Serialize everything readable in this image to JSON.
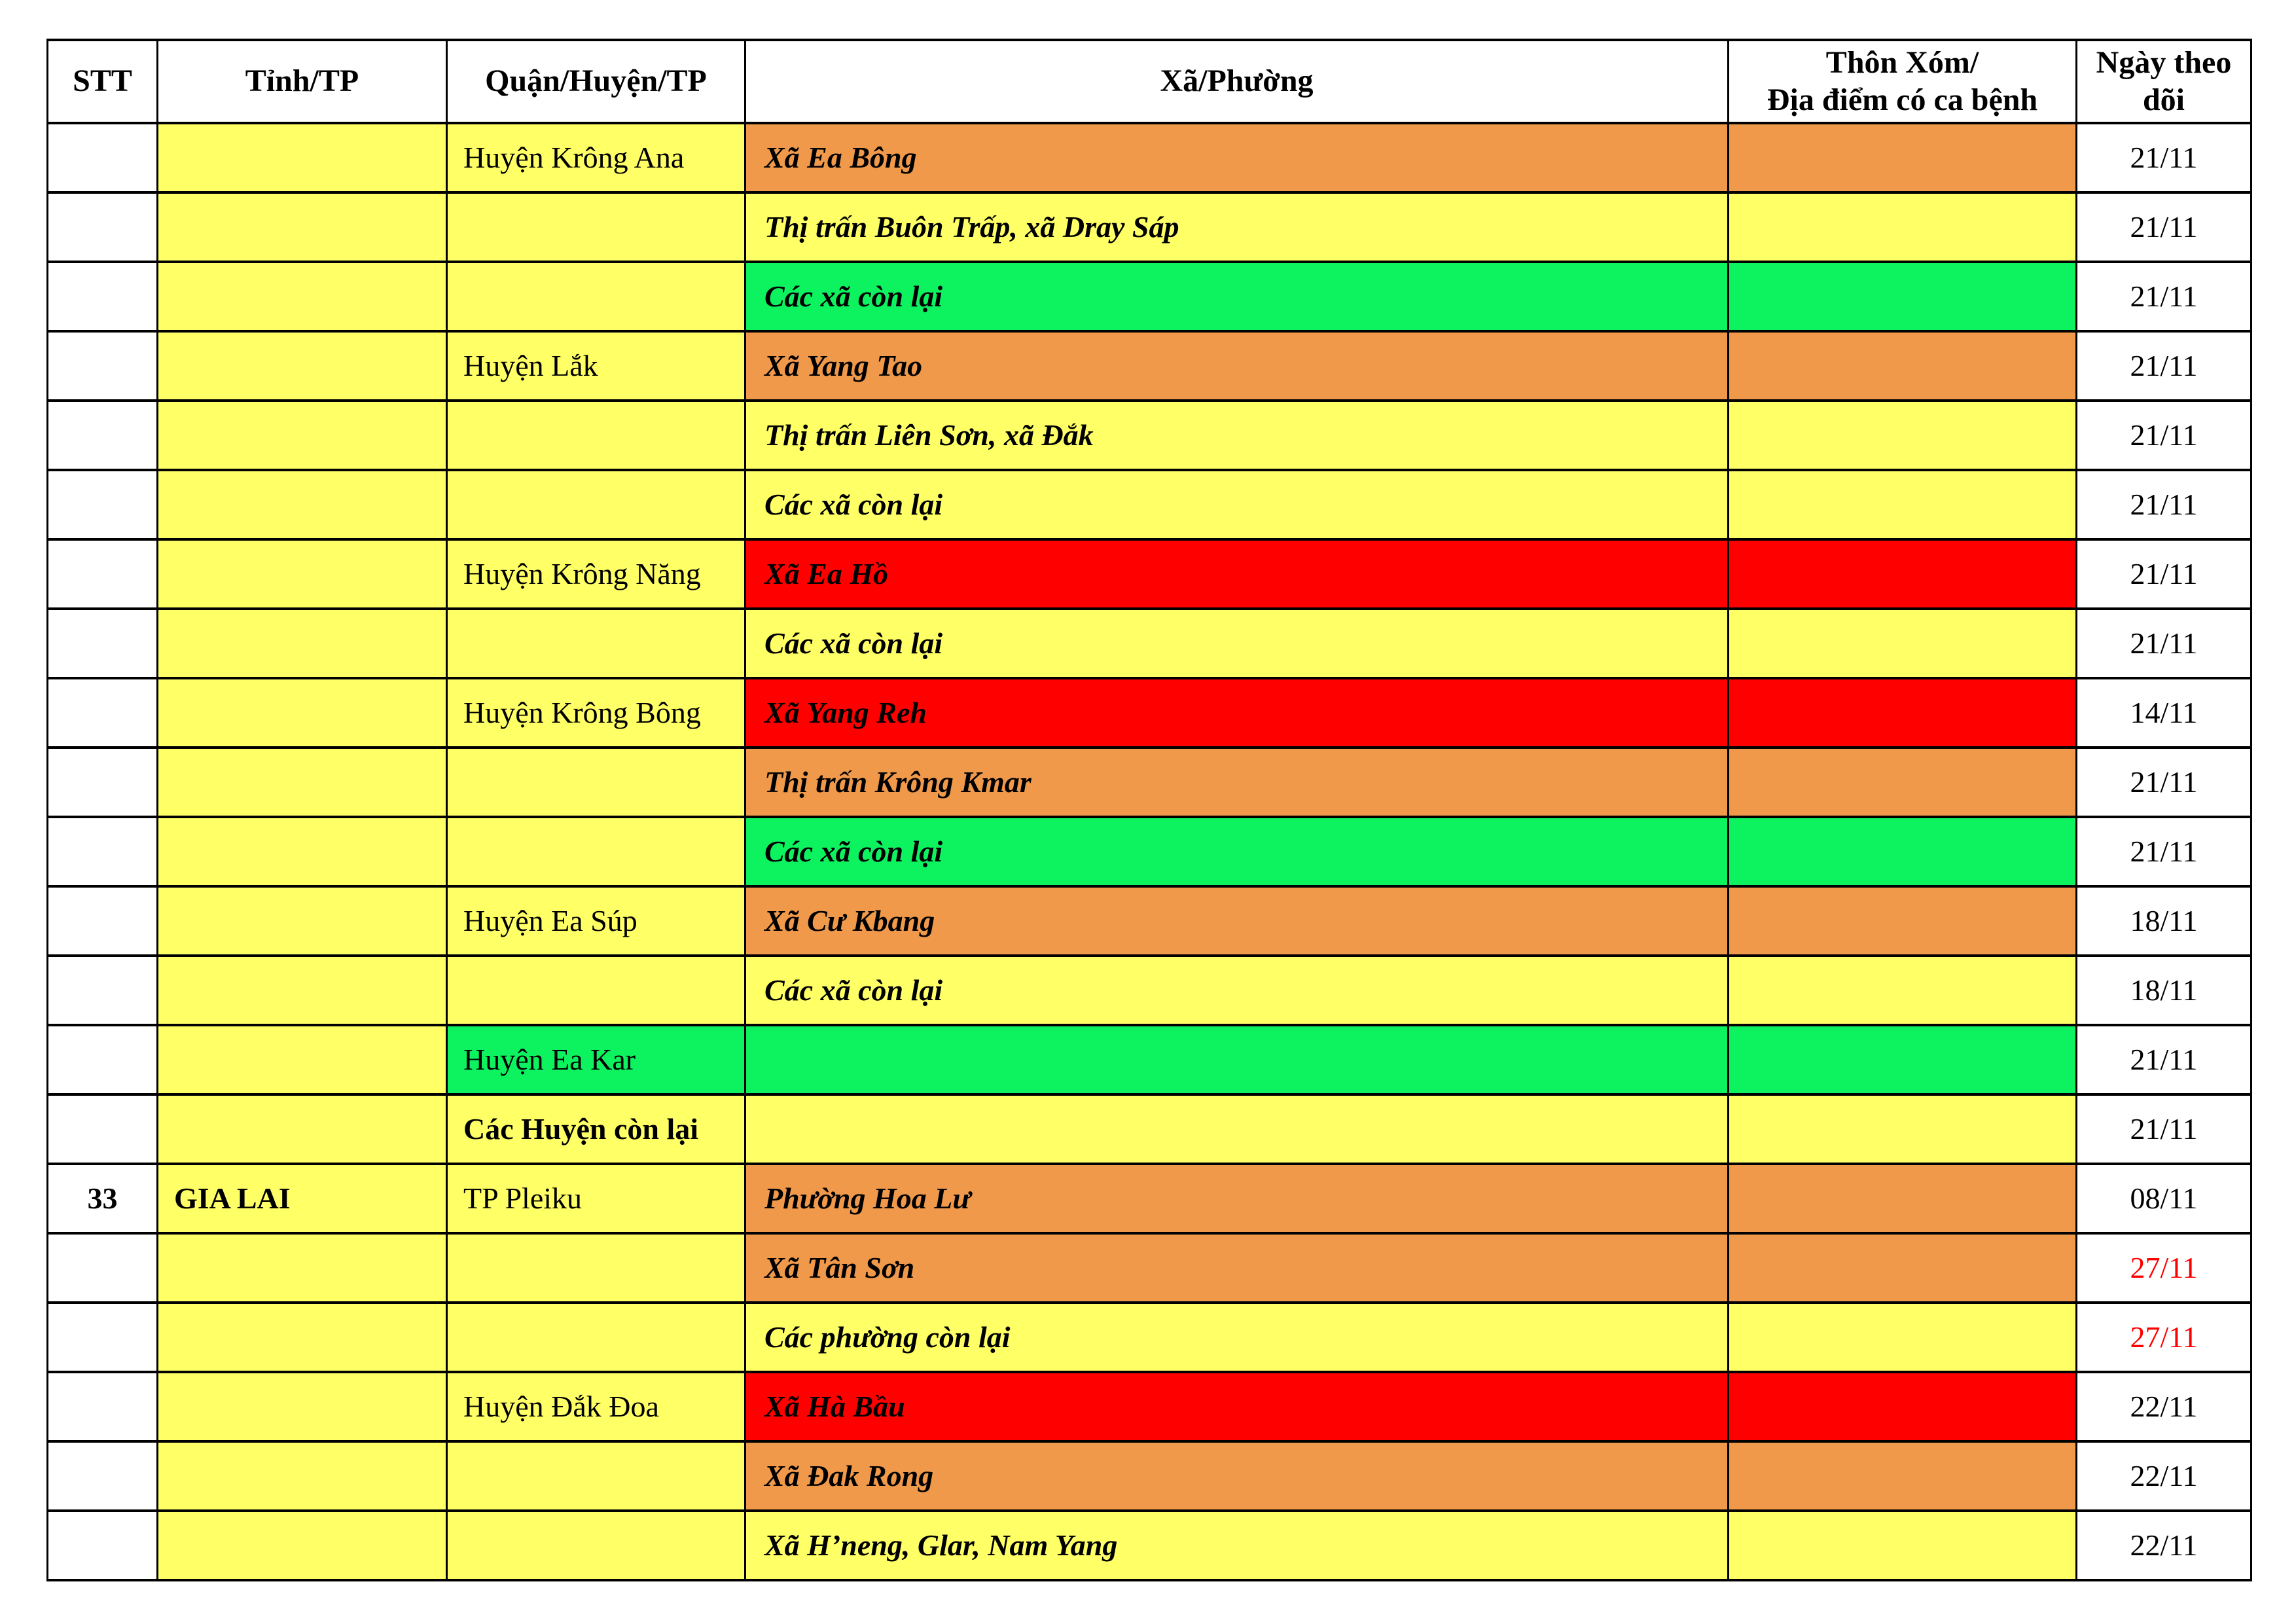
{
  "colors": {
    "yellow": "#FFFF66",
    "orange": "#F0994B",
    "red": "#FF0000",
    "green": "#0DF35F",
    "white": "#FFFFFF",
    "date_alert": "#FF0000",
    "text": "#000000",
    "border": "#000000"
  },
  "table": {
    "headers": [
      "STT",
      "Tỉnh/TP",
      "Quận/Huyện/TP",
      "Xã/Phường",
      "Thôn Xóm/\nĐịa điểm có ca bệnh",
      "Ngày theo\ndõi"
    ],
    "rows": [
      {
        "stt": "",
        "province": "",
        "district": "Huyện Krông Ana",
        "district_color": "yellow",
        "district_bold": false,
        "ward": "Xã Ea Bông",
        "ward_color": "orange",
        "hamlet": "",
        "hamlet_color": "orange",
        "date": "21/11",
        "date_color": "black"
      },
      {
        "stt": "",
        "province": "",
        "district": "",
        "district_color": "yellow",
        "district_bold": false,
        "ward": "Thị trấn Buôn Trấp, xã Dray Sáp",
        "ward_color": "yellow",
        "hamlet": "",
        "hamlet_color": "yellow",
        "date": "21/11",
        "date_color": "black"
      },
      {
        "stt": "",
        "province": "",
        "district": "",
        "district_color": "yellow",
        "district_bold": false,
        "ward": "Các xã còn lại",
        "ward_color": "green",
        "hamlet": "",
        "hamlet_color": "green",
        "date": "21/11",
        "date_color": "black"
      },
      {
        "stt": "",
        "province": "",
        "district": "Huyện Lắk",
        "district_color": "yellow",
        "district_bold": false,
        "ward": "Xã Yang Tao",
        "ward_color": "orange",
        "hamlet": "",
        "hamlet_color": "orange",
        "date": "21/11",
        "date_color": "black"
      },
      {
        "stt": "",
        "province": "",
        "district": "",
        "district_color": "yellow",
        "district_bold": false,
        "ward": "Thị trấn Liên Sơn, xã Đắk",
        "ward_color": "yellow",
        "hamlet": "",
        "hamlet_color": "yellow",
        "date": "21/11",
        "date_color": "black"
      },
      {
        "stt": "",
        "province": "",
        "district": "",
        "district_color": "yellow",
        "district_bold": false,
        "ward": "Các xã còn lại",
        "ward_color": "yellow",
        "hamlet": "",
        "hamlet_color": "yellow",
        "date": "21/11",
        "date_color": "black"
      },
      {
        "stt": "",
        "province": "",
        "district": "Huyện Krông Năng",
        "district_color": "yellow",
        "district_bold": false,
        "ward": "Xã Ea Hồ",
        "ward_color": "red",
        "hamlet": "",
        "hamlet_color": "red",
        "date": "21/11",
        "date_color": "black"
      },
      {
        "stt": "",
        "province": "",
        "district": "",
        "district_color": "yellow",
        "district_bold": false,
        "ward": "Các xã còn lại",
        "ward_color": "yellow",
        "hamlet": "",
        "hamlet_color": "yellow",
        "date": "21/11",
        "date_color": "black"
      },
      {
        "stt": "",
        "province": "",
        "district": "Huyện Krông Bông",
        "district_color": "yellow",
        "district_bold": false,
        "ward": "Xã Yang Reh",
        "ward_color": "red",
        "hamlet": "",
        "hamlet_color": "red",
        "date": "14/11",
        "date_color": "black"
      },
      {
        "stt": "",
        "province": "",
        "district": "",
        "district_color": "yellow",
        "district_bold": false,
        "ward": "Thị trấn Krông Kmar",
        "ward_color": "orange",
        "hamlet": "",
        "hamlet_color": "orange",
        "date": "21/11",
        "date_color": "black"
      },
      {
        "stt": "",
        "province": "",
        "district": "",
        "district_color": "yellow",
        "district_bold": false,
        "ward": "Các xã còn lại",
        "ward_color": "green",
        "hamlet": "",
        "hamlet_color": "green",
        "date": "21/11",
        "date_color": "black"
      },
      {
        "stt": "",
        "province": "",
        "district": "Huyện Ea Súp",
        "district_color": "yellow",
        "district_bold": false,
        "ward": "Xã Cư Kbang",
        "ward_color": "orange",
        "hamlet": "",
        "hamlet_color": "orange",
        "date": "18/11",
        "date_color": "black"
      },
      {
        "stt": "",
        "province": "",
        "district": "",
        "district_color": "yellow",
        "district_bold": false,
        "ward": "Các xã còn lại",
        "ward_color": "yellow",
        "hamlet": "",
        "hamlet_color": "yellow",
        "date": "18/11",
        "date_color": "black"
      },
      {
        "stt": "",
        "province": "",
        "district": "Huyện Ea Kar",
        "district_color": "green",
        "district_bold": false,
        "ward": "",
        "ward_color": "green",
        "hamlet": "",
        "hamlet_color": "green",
        "date": "21/11",
        "date_color": "black"
      },
      {
        "stt": "",
        "province": "",
        "district": "Các Huyện còn lại",
        "district_color": "yellow",
        "district_bold": true,
        "ward": "",
        "ward_color": "yellow",
        "hamlet": "",
        "hamlet_color": "yellow",
        "date": "21/11",
        "date_color": "black"
      },
      {
        "stt": "33",
        "province": "GIA LAI",
        "district": "TP Pleiku",
        "district_color": "yellow",
        "district_bold": false,
        "ward": "Phường Hoa Lư",
        "ward_color": "orange",
        "hamlet": "",
        "hamlet_color": "orange",
        "date": "08/11",
        "date_color": "black"
      },
      {
        "stt": "",
        "province": "",
        "district": "",
        "district_color": "yellow",
        "district_bold": false,
        "ward": "Xã Tân Sơn",
        "ward_color": "orange",
        "hamlet": "",
        "hamlet_color": "orange",
        "date": "27/11",
        "date_color": "red"
      },
      {
        "stt": "",
        "province": "",
        "district": "",
        "district_color": "yellow",
        "district_bold": false,
        "ward": "Các phường còn lại",
        "ward_color": "yellow",
        "hamlet": "",
        "hamlet_color": "yellow",
        "date": "27/11",
        "date_color": "red"
      },
      {
        "stt": "",
        "province": "",
        "district": "Huyện Đắk Đoa",
        "district_color": "yellow",
        "district_bold": false,
        "ward": "Xã Hà Bầu",
        "ward_color": "red",
        "hamlet": "",
        "hamlet_color": "red",
        "date": "22/11",
        "date_color": "black"
      },
      {
        "stt": "",
        "province": "",
        "district": "",
        "district_color": "yellow",
        "district_bold": false,
        "ward": "Xã Đak Rong",
        "ward_color": "orange",
        "hamlet": "",
        "hamlet_color": "orange",
        "date": "22/11",
        "date_color": "black"
      },
      {
        "stt": "",
        "province": "",
        "district": "",
        "district_color": "yellow",
        "district_bold": false,
        "ward": "Xã H’neng, Glar, Nam Yang",
        "ward_color": "yellow",
        "hamlet": "",
        "hamlet_color": "yellow",
        "date": "22/11",
        "date_color": "black"
      }
    ]
  }
}
